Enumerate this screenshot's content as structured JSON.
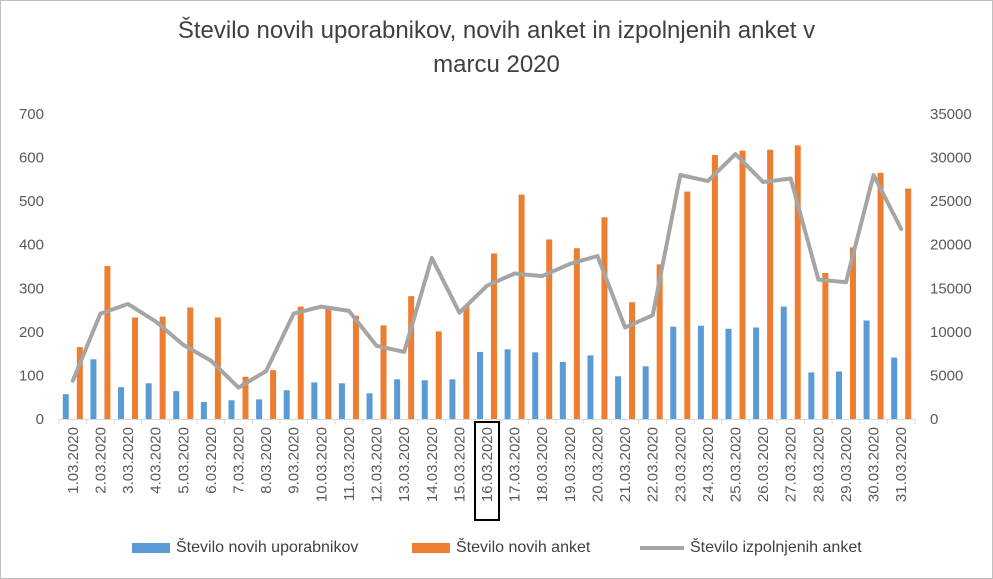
{
  "chart_data": {
    "type": "bar+line",
    "title": "Število novih uporabnikov, novih anket in izpolnjenih anket v\nmarcu 2020",
    "categories": [
      "1.03.2020",
      "2.03.2020",
      "3.03.2020",
      "4.03.2020",
      "5.03.2020",
      "6.03.2020",
      "7.03.2020",
      "8.03.2020",
      "9.03.2020",
      "10.03.2020",
      "11.03.2020",
      "12.03.2020",
      "13.03.2020",
      "14.03.2020",
      "15.03.2020",
      "16.03.2020",
      "17.03.2020",
      "18.03.2020",
      "19.03.2020",
      "20.03.2020",
      "21.03.2020",
      "22.03.2020",
      "23.03.2020",
      "24.03.2020",
      "25.03.2020",
      "26.03.2020",
      "27.03.2020",
      "28.03.2020",
      "29.03.2020",
      "30.03.2020",
      "31.03.2020"
    ],
    "highlighted_category": "16.03.2020",
    "series": [
      {
        "name": "Število novih uporabnikov",
        "type": "bar",
        "axis": "left",
        "color": "#5b9bd5",
        "values": [
          57,
          137,
          73,
          82,
          64,
          39,
          43,
          45,
          66,
          84,
          82,
          59,
          91,
          89,
          91,
          154,
          160,
          153,
          131,
          146,
          98,
          121,
          212,
          214,
          207,
          210,
          258,
          107,
          109,
          226,
          141
        ]
      },
      {
        "name": "Število novih anket",
        "type": "bar",
        "axis": "left",
        "color": "#ed7d31",
        "values": [
          165,
          351,
          233,
          235,
          256,
          233,
          97,
          112,
          258,
          256,
          237,
          215,
          282,
          201,
          260,
          380,
          515,
          412,
          392,
          463,
          268,
          355,
          522,
          606,
          616,
          618,
          628,
          335,
          394,
          565,
          529
        ]
      },
      {
        "name": "Število izpolnjenih anket",
        "type": "line",
        "axis": "right",
        "color": "#a5a5a5",
        "values": [
          4400,
          12100,
          13200,
          11200,
          8500,
          6700,
          3600,
          5500,
          12100,
          12900,
          12400,
          8400,
          7700,
          18500,
          12200,
          15300,
          16700,
          16400,
          17800,
          18700,
          10500,
          11900,
          28000,
          27300,
          30400,
          27200,
          27600,
          16000,
          15700,
          28000,
          21800
        ]
      }
    ],
    "y_left": {
      "min": 0,
      "max": 700,
      "ticks": [
        "0",
        "100",
        "200",
        "300",
        "400",
        "500",
        "600",
        "700"
      ]
    },
    "y_right": {
      "min": 0,
      "max": 35000,
      "ticks": [
        "0",
        "5000",
        "10000",
        "15000",
        "20000",
        "25000",
        "30000",
        "35000"
      ]
    },
    "grid": false,
    "legend_position": "bottom"
  }
}
